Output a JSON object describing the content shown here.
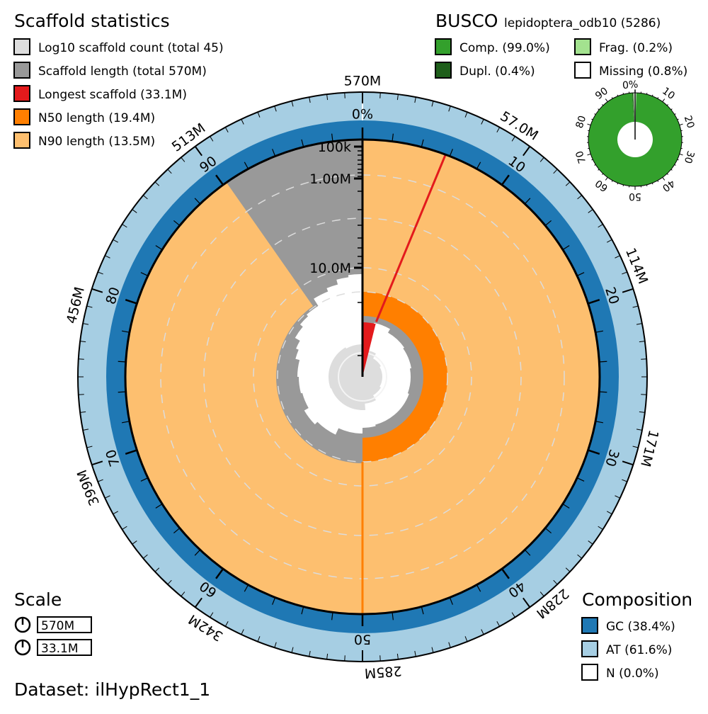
{
  "chart_data": {
    "type": "snail",
    "title": "Scaffold statistics",
    "dataset_label": "Dataset: ilHypRect1_1",
    "legend": [
      {
        "label": "Log10 scaffold count (total 45)",
        "color": "#dddddd"
      },
      {
        "label": "Scaffold length (total 570M)",
        "color": "#999999"
      },
      {
        "label": "Longest scaffold (33.1M)",
        "color": "#e31a1c"
      },
      {
        "label": "N50 length (19.4M)",
        "color": "#ff7f00"
      },
      {
        "label": "N90 length (13.5M)",
        "color": "#fdbf6f"
      }
    ],
    "stats": {
      "scaffold_count": 45,
      "total_length": "570M",
      "longest": "33.1M",
      "n50": "19.4M",
      "n90": "13.5M"
    },
    "percent_ticks": [
      "0%",
      "10",
      "20",
      "30",
      "40",
      "50",
      "60",
      "70",
      "80",
      "90"
    ],
    "length_ticks": [
      "570M",
      "57.0M",
      "114M",
      "171M",
      "228M",
      "285M",
      "342M",
      "399M",
      "456M",
      "513M"
    ],
    "radial_ticks": [
      "100k",
      "1.00M",
      "10.0M"
    ],
    "busco": {
      "title": "BUSCO",
      "lineage": "lepidoptera_odb10 (5286)",
      "legend": [
        {
          "label": "Comp. (99.0%)",
          "color": "#33a02c",
          "value": 99.0
        },
        {
          "label": "Frag. (0.2%)",
          "color": "#a3e28f",
          "value": 0.2
        },
        {
          "label": "Dupl. (0.4%)",
          "color": "#1e5e1a",
          "value": 0.4
        },
        {
          "label": "Missing (0.8%)",
          "color": "#ffffff",
          "value": 0.8
        }
      ],
      "ticks": [
        "0%",
        "10",
        "20",
        "30",
        "40",
        "50",
        "60",
        "70",
        "80",
        "90"
      ]
    },
    "scale": {
      "title": "Scale",
      "values": [
        "570M",
        "33.1M"
      ]
    },
    "composition": {
      "title": "Composition",
      "legend": [
        {
          "label": "GC (38.4%)",
          "color": "#1f78b4",
          "value": 38.4
        },
        {
          "label": "AT (61.6%)",
          "color": "#a6cee3",
          "value": 61.6
        },
        {
          "label": "N (0.0%)",
          "color": "#ffffff",
          "value": 0.0
        }
      ]
    }
  }
}
